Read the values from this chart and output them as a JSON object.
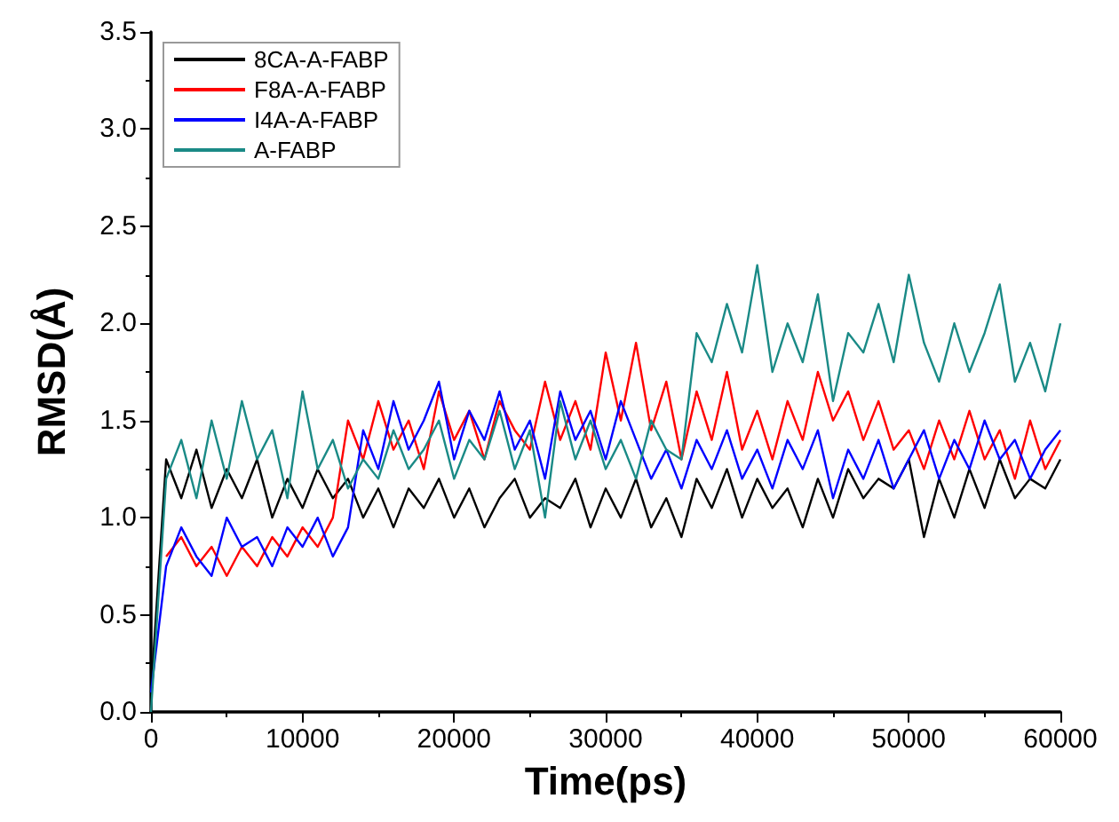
{
  "chart_data": {
    "type": "line",
    "xlabel": "Time(ps)",
    "ylabel": "RMSD(Å)",
    "x": [
      0,
      1000,
      2000,
      3000,
      4000,
      5000,
      6000,
      7000,
      8000,
      9000,
      10000,
      11000,
      12000,
      13000,
      14000,
      15000,
      16000,
      17000,
      18000,
      19000,
      20000,
      21000,
      22000,
      23000,
      24000,
      25000,
      26000,
      27000,
      28000,
      29000,
      30000,
      31000,
      32000,
      33000,
      34000,
      35000,
      36000,
      37000,
      38000,
      39000,
      40000,
      41000,
      42000,
      43000,
      44000,
      45000,
      46000,
      47000,
      48000,
      49000,
      50000,
      51000,
      52000,
      53000,
      54000,
      55000,
      56000,
      57000,
      58000,
      59000,
      60000
    ],
    "series": [
      {
        "name": "8CA-A-FABP",
        "color": "#000000",
        "values": [
          0.1,
          1.3,
          1.1,
          1.35,
          1.05,
          1.25,
          1.1,
          1.3,
          1.0,
          1.2,
          1.05,
          1.25,
          1.1,
          1.2,
          1.0,
          1.15,
          0.95,
          1.15,
          1.05,
          1.2,
          1.0,
          1.15,
          0.95,
          1.1,
          1.2,
          1.0,
          1.1,
          1.05,
          1.2,
          0.95,
          1.15,
          1.0,
          1.2,
          0.95,
          1.1,
          0.9,
          1.2,
          1.05,
          1.25,
          1.0,
          1.2,
          1.05,
          1.15,
          0.95,
          1.2,
          1.0,
          1.25,
          1.1,
          1.2,
          1.15,
          1.3,
          0.9,
          1.2,
          1.0,
          1.25,
          1.05,
          1.3,
          1.1,
          1.2,
          1.15,
          1.3
        ]
      },
      {
        "name": "F8A-A-FABP",
        "color": "#ff0000",
        "values": [
          null,
          0.8,
          0.9,
          0.75,
          0.85,
          0.7,
          0.85,
          0.75,
          0.9,
          0.8,
          0.95,
          0.85,
          1.0,
          1.5,
          1.3,
          1.6,
          1.35,
          1.5,
          1.25,
          1.65,
          1.4,
          1.55,
          1.3,
          1.6,
          1.45,
          1.35,
          1.7,
          1.4,
          1.6,
          1.35,
          1.85,
          1.5,
          1.9,
          1.45,
          1.7,
          1.3,
          1.65,
          1.4,
          1.75,
          1.35,
          1.55,
          1.3,
          1.6,
          1.4,
          1.75,
          1.5,
          1.65,
          1.4,
          1.6,
          1.35,
          1.45,
          1.25,
          1.5,
          1.3,
          1.55,
          1.3,
          1.45,
          1.2,
          1.5,
          1.25,
          1.4
        ]
      },
      {
        "name": "I4A-A-FABP",
        "color": "#0000ff",
        "values": [
          0.1,
          0.75,
          0.95,
          0.8,
          0.7,
          1.0,
          0.85,
          0.9,
          0.75,
          0.95,
          0.85,
          1.0,
          0.8,
          0.95,
          1.45,
          1.25,
          1.6,
          1.35,
          1.5,
          1.7,
          1.3,
          1.55,
          1.4,
          1.65,
          1.35,
          1.5,
          1.2,
          1.65,
          1.4,
          1.55,
          1.3,
          1.6,
          1.4,
          1.2,
          1.35,
          1.15,
          1.4,
          1.25,
          1.45,
          1.2,
          1.35,
          1.15,
          1.4,
          1.25,
          1.45,
          1.1,
          1.35,
          1.2,
          1.4,
          1.15,
          1.3,
          1.45,
          1.2,
          1.4,
          1.25,
          1.5,
          1.3,
          1.4,
          1.2,
          1.35,
          1.45
        ]
      },
      {
        "name": "A-FABP",
        "color": "#1a8a86",
        "values": [
          0.0,
          1.2,
          1.4,
          1.1,
          1.5,
          1.2,
          1.6,
          1.3,
          1.45,
          1.1,
          1.65,
          1.25,
          1.4,
          1.15,
          1.3,
          1.2,
          1.45,
          1.25,
          1.35,
          1.5,
          1.2,
          1.4,
          1.3,
          1.55,
          1.25,
          1.45,
          1.0,
          1.6,
          1.3,
          1.5,
          1.25,
          1.4,
          1.2,
          1.5,
          1.35,
          1.3,
          1.95,
          1.8,
          2.1,
          1.85,
          2.3,
          1.75,
          2.0,
          1.8,
          2.15,
          1.6,
          1.95,
          1.85,
          2.1,
          1.8,
          2.25,
          1.9,
          1.7,
          2.0,
          1.75,
          1.95,
          2.2,
          1.7,
          1.9,
          1.65,
          2.0
        ]
      }
    ],
    "xlim": [
      0,
      60000
    ],
    "xticks": [
      0,
      10000,
      20000,
      30000,
      40000,
      50000,
      60000
    ],
    "ylim": [
      0,
      3.5
    ],
    "yticks": [
      {
        "value": 0,
        "label": "0.0"
      },
      {
        "value": 0.5,
        "label": "0.5"
      },
      {
        "value": 1,
        "label": "1.0"
      },
      {
        "value": 1.5,
        "label": "1.5"
      },
      {
        "value": 2,
        "label": "2.0"
      },
      {
        "value": 2.5,
        "label": "2.5"
      },
      {
        "value": 3,
        "label": "3.0"
      },
      {
        "value": 3.5,
        "label": "3.5"
      }
    ],
    "grid": false,
    "legend": "top left",
    "marker": "none",
    "line_style": "solid"
  }
}
